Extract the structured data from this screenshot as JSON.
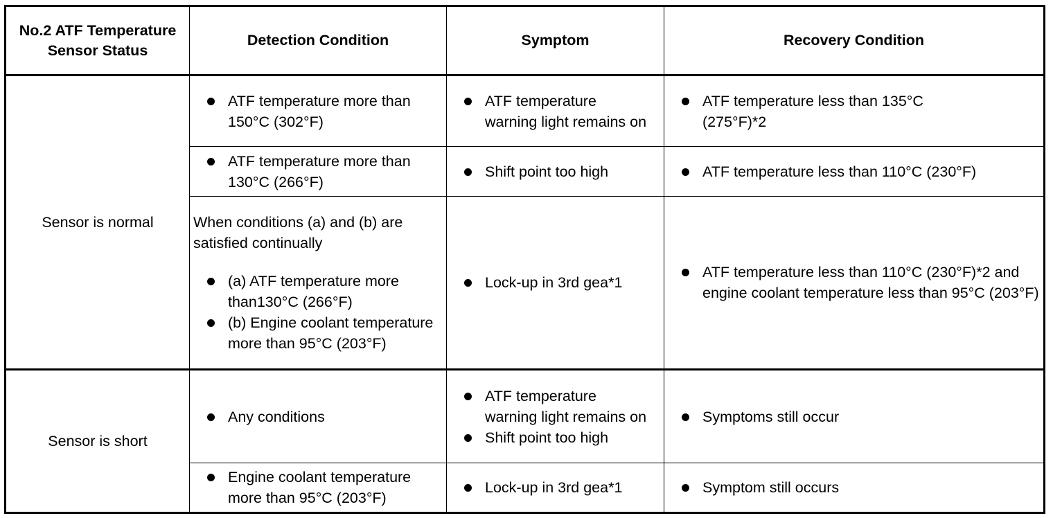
{
  "headers": {
    "status": "No.2 ATF Temperature Sensor Status",
    "detection": "Detection Condition",
    "symptom": "Symptom",
    "recovery": "Recovery Condition"
  },
  "groups": [
    {
      "status": "Sensor is normal",
      "rows": [
        {
          "detection": [
            "ATF temperature more than 150°C (302°F)"
          ],
          "symptom": [
            "ATF temperature warning light remains on"
          ],
          "recovery": [
            "ATF temperature less than 135°C (275°F)*2"
          ]
        },
        {
          "detection": [
            "ATF temperature more than 130°C (266°F)"
          ],
          "symptom": [
            "Shift point too high"
          ],
          "recovery": [
            "ATF temperature less than 110°C (230°F)"
          ]
        },
        {
          "detection_intro": "When conditions (a) and (b) are satisfied continually",
          "detection": [
            "(a) ATF temperature more than130°C (266°F)",
            "(b) Engine coolant temperature more than 95°C (203°F)"
          ],
          "symptom": [
            "Lock-up in 3rd gea*1"
          ],
          "recovery": [
            "ATF temperature less than 110°C (230°F)*2 and engine coolant temperature less than 95°C (203°F)"
          ]
        }
      ]
    },
    {
      "status": "Sensor is short",
      "rows": [
        {
          "detection": [
            "Any conditions"
          ],
          "symptom": [
            "ATF temperature warning light remains on",
            "Shift point too high"
          ],
          "recovery": [
            "Symptoms still occur"
          ]
        },
        {
          "detection": [
            "Engine coolant temperature more than 95°C (203°F)"
          ],
          "symptom": [
            "Lock-up in 3rd gea*1"
          ],
          "recovery": [
            "Symptom still occurs"
          ]
        }
      ]
    }
  ]
}
